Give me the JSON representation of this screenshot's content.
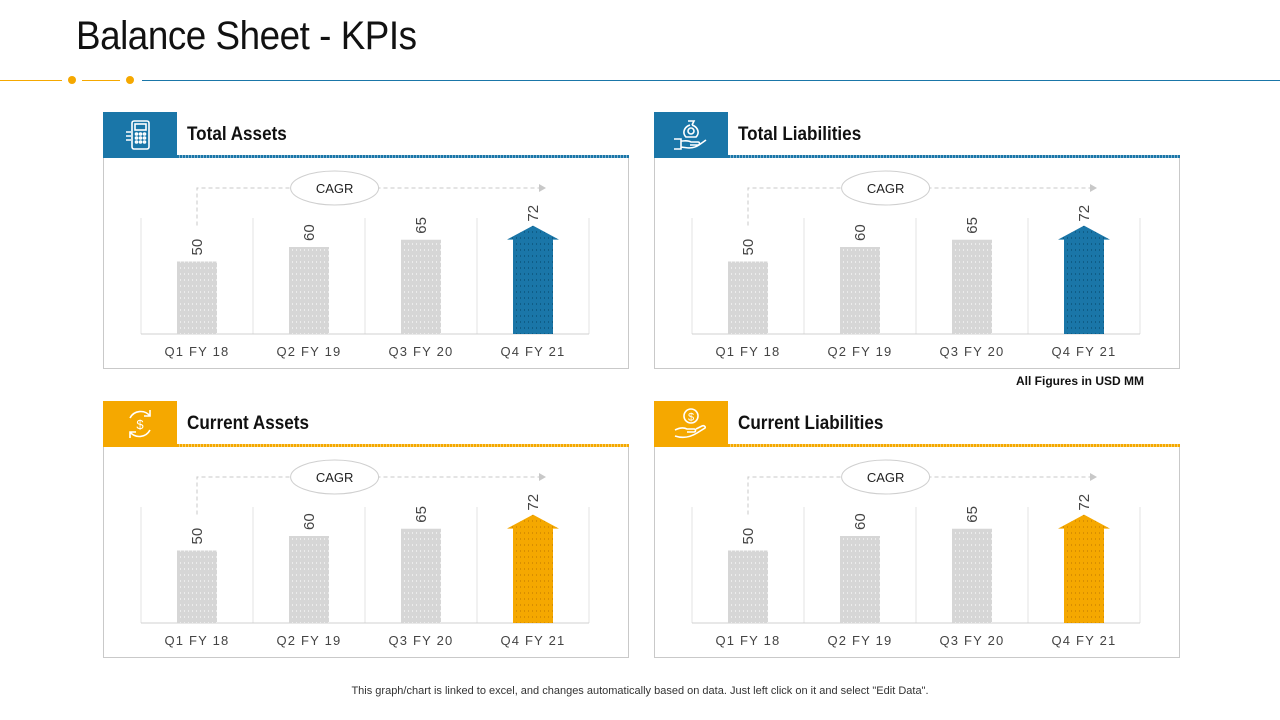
{
  "title": "Balance Sheet - KPIs",
  "colors": {
    "blue": "#1a76a8",
    "orange": "#f5a800",
    "grey_bar": "#d6d6d6"
  },
  "note": "All Figures in USD MM",
  "footer": "This graph/chart is linked to excel,  and changes automatically based on data. Just left click on it and select \"Edit Data\".",
  "panels": [
    {
      "title": "Total Assets",
      "icon": "calculator-icon",
      "accent": "blue",
      "cagr_label": "CAGR"
    },
    {
      "title": "Total Liabilities",
      "icon": "money-bag-hand-icon",
      "accent": "blue",
      "cagr_label": "CAGR"
    },
    {
      "title": "Current Assets",
      "icon": "dollar-cycle-icon",
      "accent": "orange",
      "cagr_label": "CAGR"
    },
    {
      "title": "Current Liabilities",
      "icon": "hand-dollar-icon",
      "accent": "orange",
      "cagr_label": "CAGR"
    }
  ],
  "chart_data": [
    {
      "type": "bar",
      "title": "Total Assets",
      "categories": [
        "Q1 FY 18",
        "Q2 FY 19",
        "Q3 FY 20",
        "Q4 FY 21"
      ],
      "values": [
        50,
        60,
        65,
        72
      ],
      "ylim": [
        0,
        80
      ],
      "annotation": "CAGR"
    },
    {
      "type": "bar",
      "title": "Total Liabilities",
      "categories": [
        "Q1 FY 18",
        "Q2 FY 19",
        "Q3 FY 20",
        "Q4 FY 21"
      ],
      "values": [
        50,
        60,
        65,
        72
      ],
      "ylim": [
        0,
        80
      ],
      "annotation": "CAGR"
    },
    {
      "type": "bar",
      "title": "Current Assets",
      "categories": [
        "Q1 FY 18",
        "Q2 FY 19",
        "Q3 FY 20",
        "Q4 FY 21"
      ],
      "values": [
        50,
        60,
        65,
        72
      ],
      "ylim": [
        0,
        80
      ],
      "annotation": "CAGR"
    },
    {
      "type": "bar",
      "title": "Current Liabilities",
      "categories": [
        "Q1 FY 18",
        "Q2 FY 19",
        "Q3 FY 20",
        "Q4 FY 21"
      ],
      "values": [
        50,
        60,
        65,
        72
      ],
      "ylim": [
        0,
        80
      ],
      "annotation": "CAGR"
    }
  ]
}
